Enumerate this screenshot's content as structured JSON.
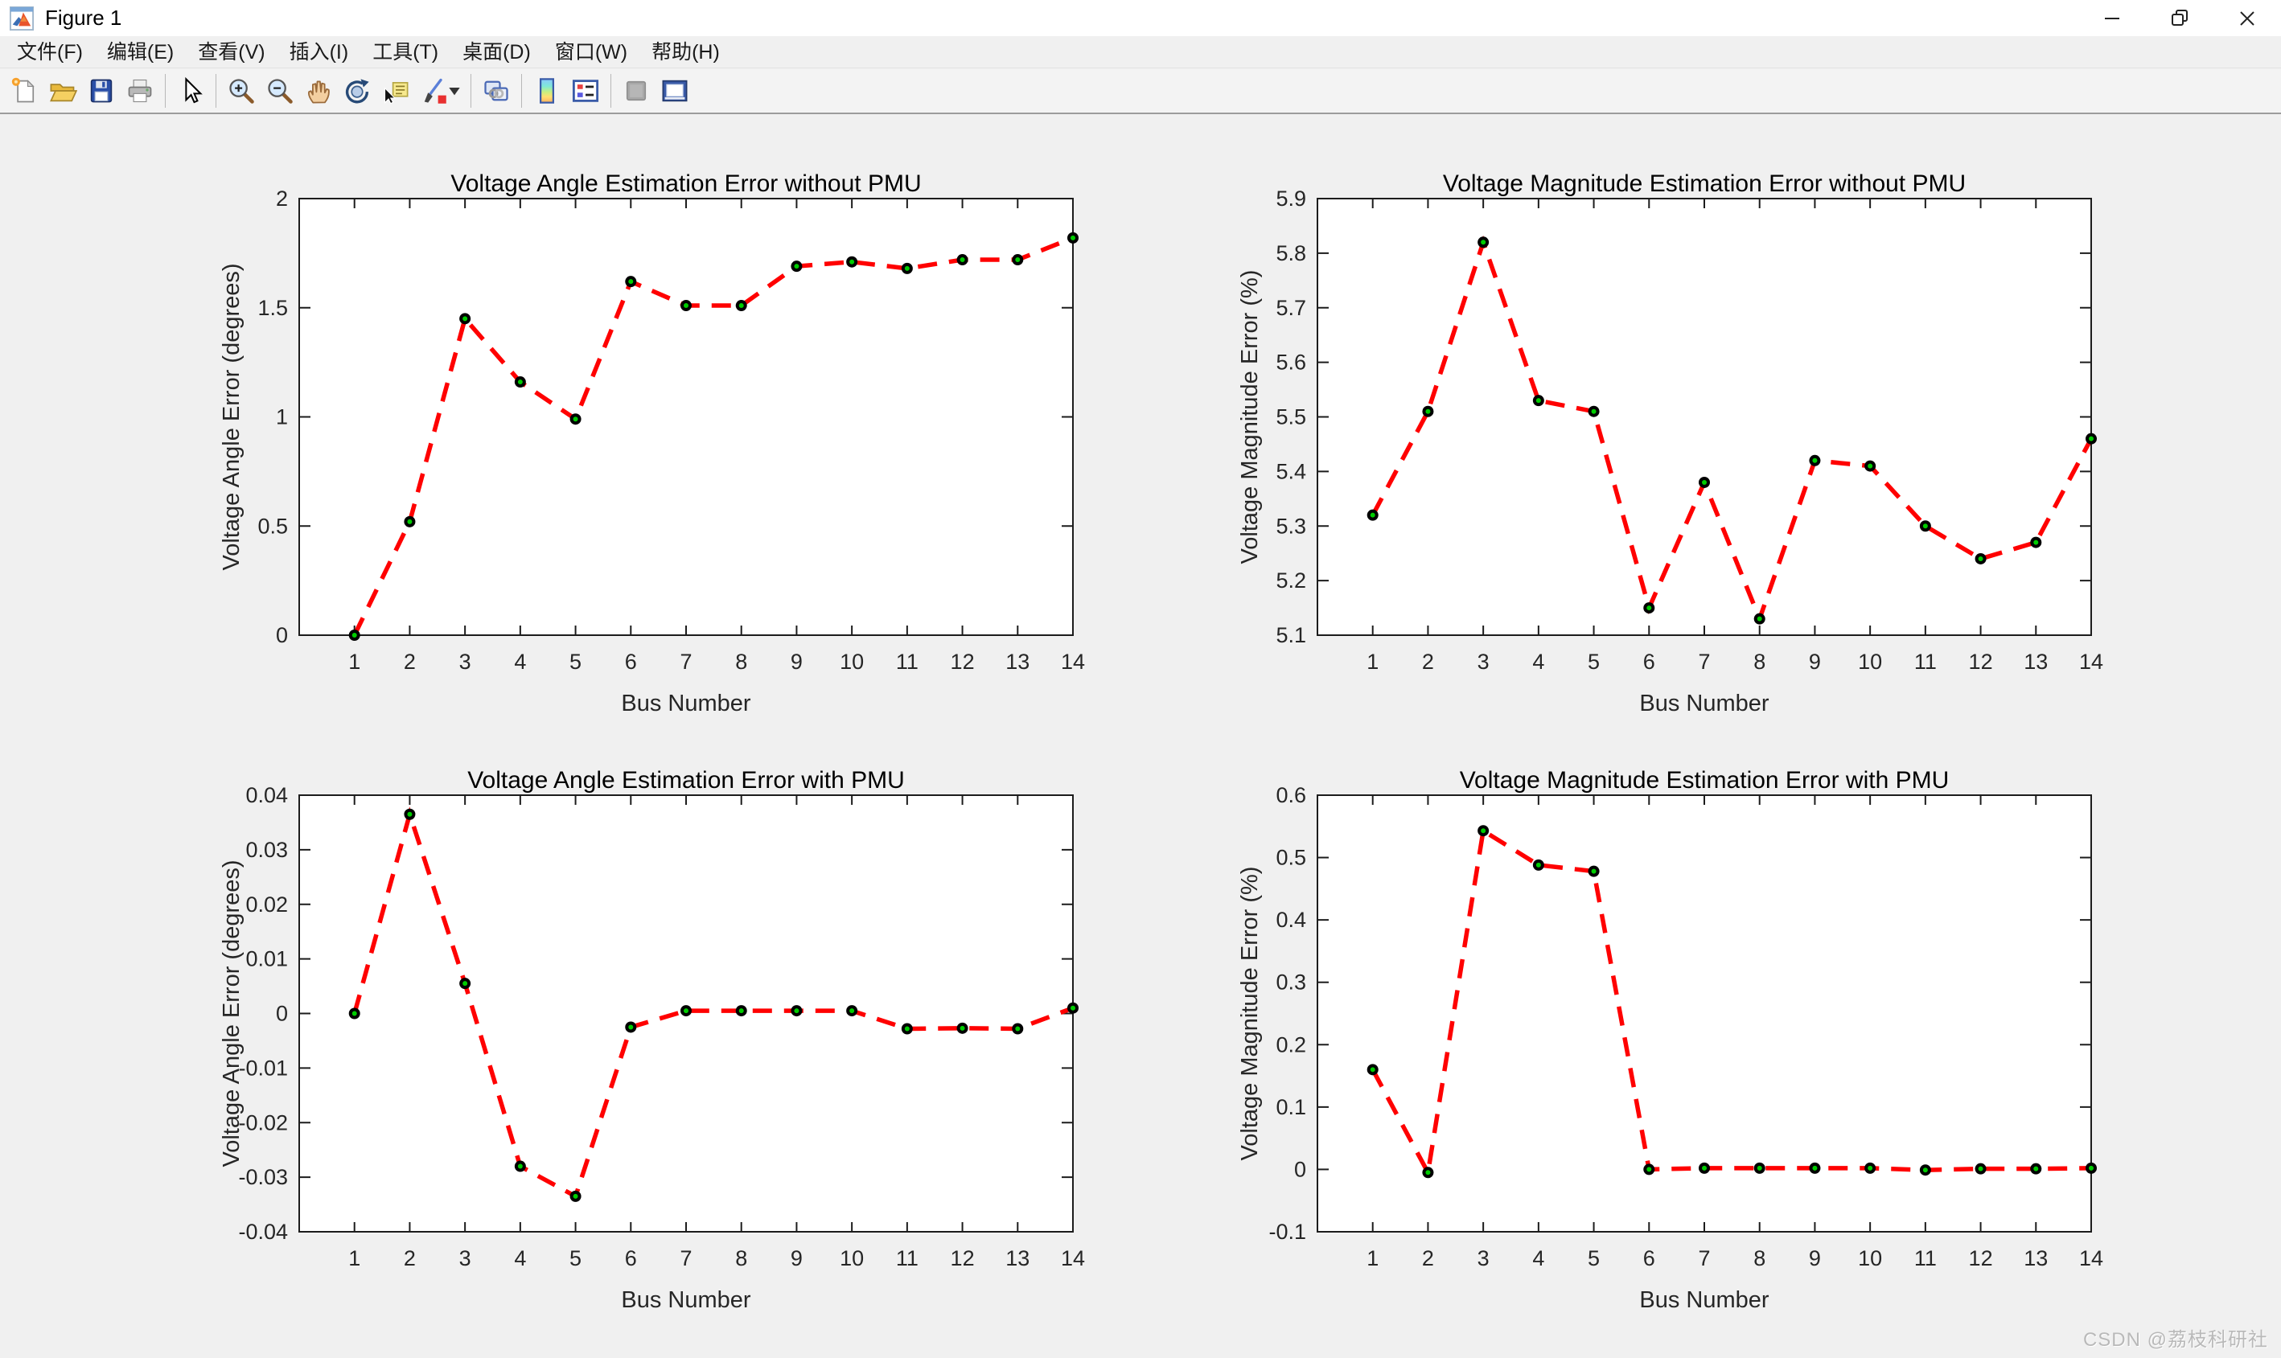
{
  "window": {
    "title": "Figure 1",
    "controls": [
      "minimize",
      "restore",
      "close"
    ]
  },
  "menubar": {
    "items": [
      "文件(F)",
      "编辑(E)",
      "查看(V)",
      "插入(I)",
      "工具(T)",
      "桌面(D)",
      "窗口(W)",
      "帮助(H)"
    ]
  },
  "toolbar": {
    "buttons": [
      "new-figure",
      "open-file",
      "save-figure",
      "print-figure",
      "pointer",
      "zoom-in",
      "zoom-out",
      "pan",
      "rotate-3d",
      "data-cursor",
      "brush",
      "link-plot",
      "insert-colorbar",
      "insert-legend",
      "plottools-off",
      "dock-figure"
    ]
  },
  "watermark": {
    "text": "CSDN @荔枝科研社"
  },
  "colors": {
    "line": "#ff0000",
    "marker_edge": "#000000",
    "marker_face": "#00cc00",
    "figure_bg": "#f0f0f0",
    "axes_bg": "#ffffff",
    "axis_color": "#1c1c1c",
    "tick_text": "#262626"
  },
  "chart_data": [
    {
      "type": "line",
      "title": "Voltage Angle Estimation Error without PMU",
      "xlabel": "Bus Number",
      "ylabel": "Voltage Angle Error (degrees)",
      "line_style": "dashed",
      "grid": false,
      "x": [
        1,
        2,
        3,
        4,
        5,
        6,
        7,
        8,
        9,
        10,
        11,
        12,
        13,
        14
      ],
      "values": [
        0,
        0.52,
        1.45,
        1.16,
        0.99,
        1.62,
        1.51,
        1.51,
        1.69,
        1.71,
        1.68,
        1.72,
        1.72,
        1.82
      ],
      "xlim": [
        0,
        14
      ],
      "ylim": [
        0,
        2
      ],
      "xticks": [
        1,
        2,
        3,
        4,
        5,
        6,
        7,
        8,
        9,
        10,
        11,
        12,
        13,
        14
      ],
      "xtick_labels": [
        "1",
        "2",
        "3",
        "4",
        "5",
        "6",
        "7",
        "8",
        "9",
        "10",
        "11",
        "12",
        "13",
        "14"
      ],
      "yticks": [
        0,
        0.5,
        1,
        1.5,
        2
      ],
      "ytick_labels": [
        "0",
        "0.5",
        "1",
        "1.5",
        "2"
      ]
    },
    {
      "type": "line",
      "title": "Voltage Magnitude Estimation Error without PMU",
      "xlabel": "Bus Number",
      "ylabel": "Voltage Magnitude Error (%)",
      "line_style": "dashed",
      "grid": false,
      "x": [
        1,
        2,
        3,
        4,
        5,
        6,
        7,
        8,
        9,
        10,
        11,
        12,
        13,
        14
      ],
      "values": [
        5.32,
        5.51,
        5.82,
        5.53,
        5.51,
        5.15,
        5.38,
        5.13,
        5.42,
        5.41,
        5.3,
        5.24,
        5.27,
        5.46
      ],
      "xlim": [
        0,
        14
      ],
      "ylim": [
        5.1,
        5.9
      ],
      "xticks": [
        1,
        2,
        3,
        4,
        5,
        6,
        7,
        8,
        9,
        10,
        11,
        12,
        13,
        14
      ],
      "xtick_labels": [
        "1",
        "2",
        "3",
        "4",
        "5",
        "6",
        "7",
        "8",
        "9",
        "10",
        "11",
        "12",
        "13",
        "14"
      ],
      "yticks": [
        5.1,
        5.2,
        5.3,
        5.4,
        5.5,
        5.6,
        5.7,
        5.8,
        5.9
      ],
      "ytick_labels": [
        "5.1",
        "5.2",
        "5.3",
        "5.4",
        "5.5",
        "5.6",
        "5.7",
        "5.8",
        "5.9"
      ]
    },
    {
      "type": "line",
      "title": "Voltage Angle Estimation Error with PMU",
      "xlabel": "Bus Number",
      "ylabel": "Voltage Angle Error (degrees)",
      "line_style": "dashed",
      "grid": false,
      "x": [
        1,
        2,
        3,
        4,
        5,
        6,
        7,
        8,
        9,
        10,
        11,
        12,
        13,
        14
      ],
      "values": [
        0,
        0.0365,
        0.0055,
        -0.028,
        -0.0335,
        -0.0025,
        0.0005,
        0.0005,
        0.0005,
        0.0005,
        -0.0028,
        -0.0027,
        -0.0028,
        0.001
      ],
      "xlim": [
        0,
        14
      ],
      "ylim": [
        -0.04,
        0.04
      ],
      "xticks": [
        1,
        2,
        3,
        4,
        5,
        6,
        7,
        8,
        9,
        10,
        11,
        12,
        13,
        14
      ],
      "xtick_labels": [
        "1",
        "2",
        "3",
        "4",
        "5",
        "6",
        "7",
        "8",
        "9",
        "10",
        "11",
        "12",
        "13",
        "14"
      ],
      "yticks": [
        -0.04,
        -0.03,
        -0.02,
        -0.01,
        0,
        0.01,
        0.02,
        0.03,
        0.04
      ],
      "ytick_labels": [
        "-0.04",
        "-0.03",
        "-0.02",
        "-0.01",
        "0",
        "0.01",
        "0.02",
        "0.03",
        "0.04"
      ]
    },
    {
      "type": "line",
      "title": "Voltage Magnitude Estimation Error with PMU",
      "xlabel": "Bus Number",
      "ylabel": "Voltage Magnitude Error (%)",
      "line_style": "dashed",
      "grid": false,
      "x": [
        1,
        2,
        3,
        4,
        5,
        6,
        7,
        8,
        9,
        10,
        11,
        12,
        13,
        14
      ],
      "values": [
        0.16,
        -0.005,
        0.543,
        0.488,
        0.478,
        0,
        0.002,
        0.002,
        0.002,
        0.002,
        -0.001,
        0.001,
        0.001,
        0.002
      ],
      "xlim": [
        0,
        14
      ],
      "ylim": [
        -0.1,
        0.6
      ],
      "xticks": [
        1,
        2,
        3,
        4,
        5,
        6,
        7,
        8,
        9,
        10,
        11,
        12,
        13,
        14
      ],
      "xtick_labels": [
        "1",
        "2",
        "3",
        "4",
        "5",
        "6",
        "7",
        "8",
        "9",
        "10",
        "11",
        "12",
        "13",
        "14"
      ],
      "yticks": [
        -0.1,
        0,
        0.1,
        0.2,
        0.3,
        0.4,
        0.5,
        0.6
      ],
      "ytick_labels": [
        "-0.1",
        "0",
        "0.1",
        "0.2",
        "0.3",
        "0.4",
        "0.5",
        "0.6"
      ]
    }
  ]
}
